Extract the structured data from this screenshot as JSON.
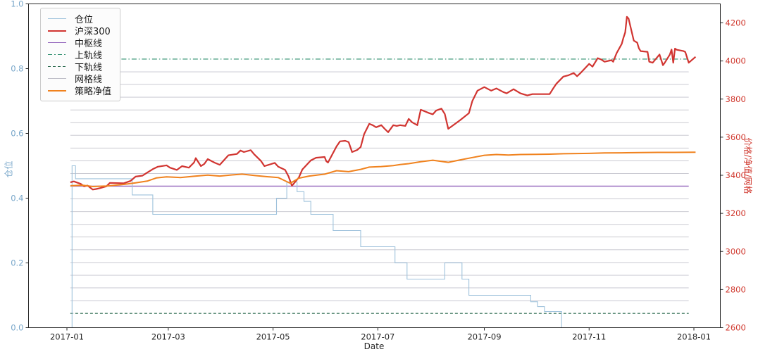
{
  "xlabel": "Date",
  "chart_data": {
    "type": "line",
    "title": "",
    "xlabel": "Date",
    "grid": "horizontal-strategy-levels",
    "legend_position": "upper-left",
    "left_axis": {
      "label": "仓位",
      "min": 0.0,
      "max": 1.0,
      "ticks": [
        "0.0",
        "0.2",
        "0.4",
        "0.6",
        "0.8",
        "1.0"
      ],
      "color": "#76a5c9"
    },
    "right_axis": {
      "label": "价格/净值/网格",
      "min": 2600,
      "max": 4200,
      "ticks": [
        2600,
        2800,
        3000,
        3200,
        3400,
        3600,
        3800,
        4000,
        4200
      ],
      "color": "#d0392f"
    },
    "x_ticks": [
      {
        "label": "2017-01",
        "date": "2017-01-01"
      },
      {
        "label": "2017-03",
        "date": "2017-03-01"
      },
      {
        "label": "2017-05",
        "date": "2017-05-01"
      },
      {
        "label": "2017-07",
        "date": "2017-07-01"
      },
      {
        "label": "2017-09",
        "date": "2017-09-01"
      },
      {
        "label": "2017-11",
        "date": "2017-11-01"
      },
      {
        "label": "2018-01",
        "date": "2018-01-01"
      }
    ],
    "hline_start": "2017-01-03",
    "hline_end": "2017-12-29",
    "legend": [
      "仓位",
      "沪深300",
      "中枢线",
      "上轨线",
      "下轨线",
      "网格线",
      "策略净值"
    ],
    "series": {
      "position": {
        "name": "仓位",
        "axis": "left",
        "color": "#9fc2dc",
        "width": 1.1,
        "style": "step",
        "points": [
          [
            "2017-01-03",
            0.0
          ],
          [
            "2017-01-04",
            0.5
          ],
          [
            "2017-01-06",
            0.46
          ],
          [
            "2017-02-08",
            0.41
          ],
          [
            "2017-02-20",
            0.35
          ],
          [
            "2017-05-03",
            0.4
          ],
          [
            "2017-05-09",
            0.45
          ],
          [
            "2017-05-15",
            0.42
          ],
          [
            "2017-05-19",
            0.39
          ],
          [
            "2017-05-23",
            0.35
          ],
          [
            "2017-06-05",
            0.3
          ],
          [
            "2017-06-21",
            0.25
          ],
          [
            "2017-07-11",
            0.2
          ],
          [
            "2017-07-18",
            0.15
          ],
          [
            "2017-08-09",
            0.2
          ],
          [
            "2017-08-19",
            0.15
          ],
          [
            "2017-08-23",
            0.1
          ],
          [
            "2017-09-28",
            0.08
          ],
          [
            "2017-10-02",
            0.065
          ],
          [
            "2017-10-06",
            0.05
          ],
          [
            "2017-10-16",
            0.0
          ],
          [
            "2018-01-02",
            0.0
          ]
        ]
      },
      "hs300": {
        "name": "沪深300",
        "axis": "right",
        "color": "#d13531",
        "width": 2.2,
        "style": "solid",
        "points": [
          [
            "2017-01-03",
            3363
          ],
          [
            "2017-01-05",
            3368
          ],
          [
            "2017-01-09",
            3355
          ],
          [
            "2017-01-11",
            3342
          ],
          [
            "2017-01-13",
            3346
          ],
          [
            "2017-01-16",
            3325
          ],
          [
            "2017-01-18",
            3328
          ],
          [
            "2017-01-20",
            3332
          ],
          [
            "2017-01-24",
            3342
          ],
          [
            "2017-01-26",
            3360
          ],
          [
            "2017-02-03",
            3358
          ],
          [
            "2017-02-07",
            3370
          ],
          [
            "2017-02-10",
            3393
          ],
          [
            "2017-02-14",
            3398
          ],
          [
            "2017-02-16",
            3410
          ],
          [
            "2017-02-20",
            3432
          ],
          [
            "2017-02-23",
            3445
          ],
          [
            "2017-02-28",
            3452
          ],
          [
            "2017-03-02",
            3440
          ],
          [
            "2017-03-06",
            3428
          ],
          [
            "2017-03-09",
            3448
          ],
          [
            "2017-03-13",
            3440
          ],
          [
            "2017-03-16",
            3467
          ],
          [
            "2017-03-17",
            3490
          ],
          [
            "2017-03-20",
            3448
          ],
          [
            "2017-03-22",
            3460
          ],
          [
            "2017-03-24",
            3485
          ],
          [
            "2017-03-28",
            3466
          ],
          [
            "2017-03-31",
            3455
          ],
          [
            "2017-04-05",
            3505
          ],
          [
            "2017-04-10",
            3512
          ],
          [
            "2017-04-12",
            3530
          ],
          [
            "2017-04-14",
            3522
          ],
          [
            "2017-04-18",
            3532
          ],
          [
            "2017-04-20",
            3510
          ],
          [
            "2017-04-24",
            3475
          ],
          [
            "2017-04-26",
            3448
          ],
          [
            "2017-05-02",
            3465
          ],
          [
            "2017-05-04",
            3445
          ],
          [
            "2017-05-08",
            3428
          ],
          [
            "2017-05-10",
            3395
          ],
          [
            "2017-05-12",
            3345
          ],
          [
            "2017-05-16",
            3388
          ],
          [
            "2017-05-18",
            3430
          ],
          [
            "2017-05-23",
            3478
          ],
          [
            "2017-05-26",
            3492
          ],
          [
            "2017-05-31",
            3496
          ],
          [
            "2017-06-01",
            3474
          ],
          [
            "2017-06-02",
            3467
          ],
          [
            "2017-06-07",
            3552
          ],
          [
            "2017-06-09",
            3578
          ],
          [
            "2017-06-12",
            3581
          ],
          [
            "2017-06-14",
            3574
          ],
          [
            "2017-06-16",
            3522
          ],
          [
            "2017-06-19",
            3533
          ],
          [
            "2017-06-21",
            3548
          ],
          [
            "2017-06-23",
            3615
          ],
          [
            "2017-06-26",
            3670
          ],
          [
            "2017-06-28",
            3663
          ],
          [
            "2017-06-30",
            3652
          ],
          [
            "2017-07-03",
            3663
          ],
          [
            "2017-07-05",
            3644
          ],
          [
            "2017-07-07",
            3626
          ],
          [
            "2017-07-10",
            3663
          ],
          [
            "2017-07-12",
            3659
          ],
          [
            "2017-07-14",
            3663
          ],
          [
            "2017-07-17",
            3659
          ],
          [
            "2017-07-19",
            3696
          ],
          [
            "2017-07-21",
            3678
          ],
          [
            "2017-07-24",
            3663
          ],
          [
            "2017-07-26",
            3744
          ],
          [
            "2017-07-31",
            3726
          ],
          [
            "2017-08-02",
            3720
          ],
          [
            "2017-08-04",
            3740
          ],
          [
            "2017-08-07",
            3750
          ],
          [
            "2017-08-09",
            3722
          ],
          [
            "2017-08-11",
            3644
          ],
          [
            "2017-08-15",
            3670
          ],
          [
            "2017-08-18",
            3690
          ],
          [
            "2017-08-23",
            3726
          ],
          [
            "2017-08-25",
            3790
          ],
          [
            "2017-08-28",
            3844
          ],
          [
            "2017-09-01",
            3863
          ],
          [
            "2017-09-05",
            3844
          ],
          [
            "2017-09-08",
            3856
          ],
          [
            "2017-09-12",
            3837
          ],
          [
            "2017-09-14",
            3830
          ],
          [
            "2017-09-18",
            3852
          ],
          [
            "2017-09-22",
            3830
          ],
          [
            "2017-09-26",
            3819
          ],
          [
            "2017-09-29",
            3826
          ],
          [
            "2017-10-09",
            3826
          ],
          [
            "2017-10-11",
            3855
          ],
          [
            "2017-10-13",
            3881
          ],
          [
            "2017-10-17",
            3918
          ],
          [
            "2017-10-20",
            3925
          ],
          [
            "2017-10-23",
            3937
          ],
          [
            "2017-10-25",
            3920
          ],
          [
            "2017-10-27",
            3937
          ],
          [
            "2017-11-01",
            3985
          ],
          [
            "2017-11-03",
            3970
          ],
          [
            "2017-11-06",
            4015
          ],
          [
            "2017-11-08",
            4008
          ],
          [
            "2017-11-10",
            3996
          ],
          [
            "2017-11-14",
            4004
          ],
          [
            "2017-11-15",
            3996
          ],
          [
            "2017-11-17",
            4041
          ],
          [
            "2017-11-20",
            4090
          ],
          [
            "2017-11-21",
            4122
          ],
          [
            "2017-11-22",
            4150
          ],
          [
            "2017-11-23",
            4232
          ],
          [
            "2017-11-24",
            4222
          ],
          [
            "2017-11-27",
            4107
          ],
          [
            "2017-11-29",
            4096
          ],
          [
            "2017-11-30",
            4066
          ],
          [
            "2017-12-01",
            4052
          ],
          [
            "2017-12-05",
            4048
          ],
          [
            "2017-12-06",
            3996
          ],
          [
            "2017-12-08",
            3991
          ],
          [
            "2017-12-12",
            4034
          ],
          [
            "2017-12-14",
            3978
          ],
          [
            "2017-12-15",
            3990
          ],
          [
            "2017-12-18",
            4034
          ],
          [
            "2017-12-19",
            4060
          ],
          [
            "2017-12-20",
            3991
          ],
          [
            "2017-12-21",
            4065
          ],
          [
            "2017-12-22",
            4059
          ],
          [
            "2017-12-26",
            4052
          ],
          [
            "2017-12-27",
            4047
          ],
          [
            "2017-12-29",
            3991
          ],
          [
            "2018-01-02",
            4022
          ]
        ]
      },
      "pivot": {
        "name": "中枢线",
        "axis": "right",
        "color": "#9467bd",
        "width": 1.4,
        "style": "solid",
        "value": 3343
      },
      "upper_band": {
        "name": "上轨线",
        "axis": "right",
        "color": "#2e8f6e",
        "width": 1.2,
        "style": "dashdot",
        "value": 4010
      },
      "lower_band": {
        "name": "下轨线",
        "axis": "right",
        "color": "#2d6b50",
        "width": 1.2,
        "style": "dashed",
        "value": 2675
      },
      "grid_lines": {
        "name": "网格线",
        "axis": "right",
        "color": "#c3c3cc",
        "width": 0.9,
        "style": "solid",
        "levels": [
          2742,
          2809,
          2875,
          2942,
          3009,
          3076,
          3142,
          3209,
          3276,
          3409,
          3476,
          3543,
          3610,
          3676,
          3743,
          3810,
          3877,
          3943
        ]
      },
      "nav": {
        "name": "策略净值",
        "axis": "right",
        "color": "#f0821e",
        "width": 2.0,
        "style": "solid",
        "points": [
          [
            "2017-01-03",
            3345
          ],
          [
            "2017-01-10",
            3348
          ],
          [
            "2017-01-16",
            3341
          ],
          [
            "2017-01-24",
            3344
          ],
          [
            "2017-02-03",
            3352
          ],
          [
            "2017-02-10",
            3360
          ],
          [
            "2017-02-17",
            3370
          ],
          [
            "2017-02-22",
            3386
          ],
          [
            "2017-02-28",
            3392
          ],
          [
            "2017-03-08",
            3388
          ],
          [
            "2017-03-16",
            3395
          ],
          [
            "2017-03-24",
            3401
          ],
          [
            "2017-03-31",
            3396
          ],
          [
            "2017-04-07",
            3402
          ],
          [
            "2017-04-13",
            3406
          ],
          [
            "2017-04-21",
            3398
          ],
          [
            "2017-04-27",
            3393
          ],
          [
            "2017-05-04",
            3388
          ],
          [
            "2017-05-11",
            3358
          ],
          [
            "2017-05-16",
            3385
          ],
          [
            "2017-05-22",
            3396
          ],
          [
            "2017-05-31",
            3406
          ],
          [
            "2017-06-07",
            3424
          ],
          [
            "2017-06-14",
            3419
          ],
          [
            "2017-06-21",
            3431
          ],
          [
            "2017-06-26",
            3443
          ],
          [
            "2017-07-03",
            3446
          ],
          [
            "2017-07-10",
            3451
          ],
          [
            "2017-07-14",
            3456
          ],
          [
            "2017-07-19",
            3461
          ],
          [
            "2017-07-26",
            3471
          ],
          [
            "2017-08-02",
            3479
          ],
          [
            "2017-08-11",
            3468
          ],
          [
            "2017-08-18",
            3481
          ],
          [
            "2017-08-25",
            3493
          ],
          [
            "2017-09-01",
            3505
          ],
          [
            "2017-09-08",
            3509
          ],
          [
            "2017-09-15",
            3506
          ],
          [
            "2017-09-22",
            3509
          ],
          [
            "2017-10-09",
            3511
          ],
          [
            "2017-10-17",
            3513
          ],
          [
            "2017-10-25",
            3514
          ],
          [
            "2017-11-01",
            3515
          ],
          [
            "2017-11-10",
            3517
          ],
          [
            "2017-11-20",
            3518
          ],
          [
            "2017-12-01",
            3519
          ],
          [
            "2017-12-11",
            3520
          ],
          [
            "2017-12-20",
            3520
          ],
          [
            "2018-01-02",
            3521
          ]
        ]
      }
    }
  }
}
